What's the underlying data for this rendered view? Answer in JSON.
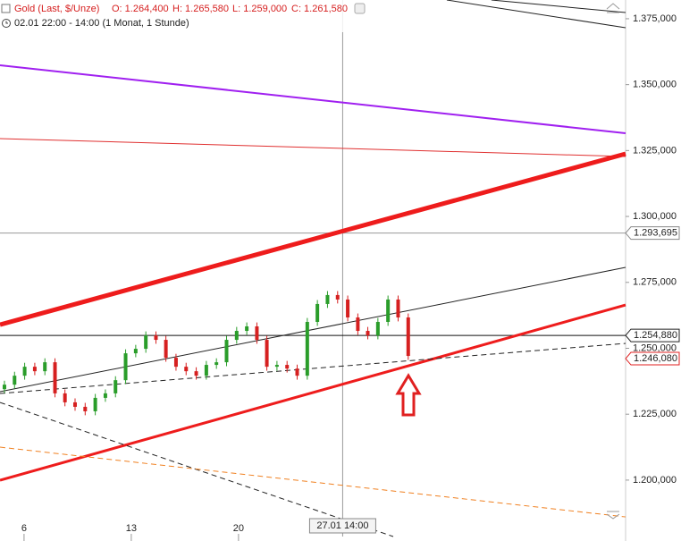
{
  "chart_data": {
    "type": "candlestick",
    "title": "Gold (Last, $/Unze)",
    "ohlc_labels": [
      "O: 1.264,400",
      "H: 1.265,580",
      "L: 1.259,000",
      "C: 1.261,580"
    ],
    "subtitle": "02.01 22:00 - 14:00 (1 Monat, 1 Stunde)",
    "xlim": [
      4.43,
      45.27
    ],
    "ylim": [
      1178.6,
      1382.1
    ],
    "xticks": [
      6,
      13,
      20
    ],
    "yticks": [
      {
        "value": 1375,
        "label": "1.375,000"
      },
      {
        "value": 1350,
        "label": "1.350,000"
      },
      {
        "value": 1325,
        "label": "1.325,000"
      },
      {
        "value": 1300,
        "label": "1.300,000"
      },
      {
        "value": 1275,
        "label": "1.275,000"
      },
      {
        "value": 1250,
        "label": "1.250,000"
      },
      {
        "value": 1225,
        "label": "1.225,000"
      },
      {
        "value": 1200,
        "label": "1.200,000"
      }
    ],
    "up_color": "#2a9d2a",
    "down_color": "#d62020",
    "candles": {
      "x": [
        4.72,
        5.38,
        6.04,
        6.7,
        7.36,
        8.02,
        8.67,
        9.33,
        9.99,
        10.65,
        11.31,
        11.97,
        12.63,
        13.29,
        13.95,
        14.61,
        15.26,
        15.92,
        16.58,
        17.24,
        17.9,
        18.56,
        19.22,
        19.88,
        20.54,
        21.2,
        21.85,
        22.51,
        23.17,
        23.83,
        24.49,
        25.15,
        25.81,
        26.47,
        27.13,
        27.79,
        28.44,
        29.1,
        29.76,
        30.42,
        31.08
      ],
      "open": [
        1234.5,
        1236.2,
        1239.6,
        1243.0,
        1241.3,
        1244.7,
        1232.9,
        1229.5,
        1227.8,
        1226.1,
        1231.2,
        1232.9,
        1237.9,
        1248.1,
        1249.8,
        1254.9,
        1253.2,
        1246.4,
        1243.0,
        1241.3,
        1239.6,
        1243.7,
        1244.7,
        1253.2,
        1256.6,
        1258.3,
        1253.2,
        1243.0,
        1243.7,
        1242.3,
        1239.6,
        1260.0,
        1266.8,
        1270.2,
        1268.5,
        1261.7,
        1256.6,
        1254.9,
        1260.0,
        1268.5,
        1261.7
      ],
      "high": [
        1237.7,
        1241.1,
        1244.5,
        1244.5,
        1246.2,
        1246.2,
        1234.4,
        1231.0,
        1229.3,
        1232.7,
        1234.4,
        1239.4,
        1249.6,
        1251.3,
        1256.4,
        1256.4,
        1254.7,
        1247.9,
        1244.5,
        1242.8,
        1245.2,
        1246.2,
        1254.7,
        1258.1,
        1259.8,
        1259.8,
        1254.7,
        1245.2,
        1245.2,
        1243.8,
        1261.5,
        1268.3,
        1271.7,
        1271.7,
        1270.0,
        1263.2,
        1258.1,
        1261.5,
        1270.0,
        1270.0,
        1263.2
      ],
      "low": [
        1233.0,
        1234.7,
        1238.1,
        1239.8,
        1239.8,
        1231.4,
        1228.0,
        1226.3,
        1224.6,
        1224.6,
        1229.7,
        1231.4,
        1236.4,
        1246.6,
        1248.3,
        1251.7,
        1244.9,
        1241.5,
        1239.8,
        1238.1,
        1238.1,
        1242.2,
        1243.2,
        1251.7,
        1255.1,
        1251.7,
        1241.5,
        1241.5,
        1240.8,
        1238.1,
        1238.1,
        1258.5,
        1265.3,
        1267.0,
        1260.2,
        1255.1,
        1253.4,
        1253.4,
        1258.5,
        1260.2,
        1245.6
      ],
      "close": [
        1236.2,
        1239.6,
        1243.0,
        1241.3,
        1244.7,
        1232.9,
        1229.5,
        1227.8,
        1226.1,
        1231.2,
        1232.9,
        1237.9,
        1248.1,
        1249.8,
        1254.9,
        1253.2,
        1246.4,
        1243.0,
        1241.3,
        1239.6,
        1243.7,
        1244.7,
        1253.2,
        1256.6,
        1258.3,
        1253.2,
        1243.0,
        1243.7,
        1242.3,
        1239.6,
        1260.0,
        1266.8,
        1270.2,
        1268.5,
        1261.7,
        1256.6,
        1254.9,
        1260.0,
        1268.5,
        1261.7,
        1247.1
      ]
    },
    "trend_lines": [
      {
        "x": [
          36.51,
          45.27
        ],
        "y": [
          1382.1,
          1377.35
        ],
        "color": "#222222",
        "width": 1,
        "dashed": false
      },
      {
        "x": [
          33.6,
          45.27
        ],
        "y": [
          1382.1,
          1371.58
        ],
        "color": "#222222",
        "width": 1,
        "dashed": false
      },
      {
        "x": [
          4.43,
          45.27
        ],
        "y": [
          1357.34,
          1331.56
        ],
        "color": "#a020f0",
        "width": 2,
        "dashed": false
      },
      {
        "x": [
          4.43,
          45.27
        ],
        "y": [
          1329.52,
          1322.74
        ],
        "color": "#e03030",
        "width": 1,
        "dashed": false
      },
      {
        "x": [
          4.43,
          45.27
        ],
        "y": [
          1258.97,
          1323.76
        ],
        "color": "#ee1c1c",
        "width": 5,
        "dashed": false
      },
      {
        "x": [
          4.43,
          45.27
        ],
        "y": [
          1199.95,
          1266.43
        ],
        "color": "#ee1c1c",
        "width": 3,
        "dashed": false
      },
      {
        "x": [
          4.43,
          45.27
        ],
        "y": [
          1233.53,
          1280.68
        ],
        "color": "#222222",
        "width": 1,
        "dashed": false
      },
      {
        "x": [
          4.43,
          45.27
        ],
        "y": [
          1232.85,
          1251.85
        ],
        "color": "#222222",
        "width": 1,
        "dashed": true
      },
      {
        "x": [
          4.43,
          30.1
        ],
        "y": [
          1229.46,
          1178.6
        ],
        "color": "#222222",
        "width": 1,
        "dashed": true
      },
      {
        "x": [
          4.43,
          45.27
        ],
        "y": [
          1212.5,
          1186.04
        ],
        "color": "#f08020",
        "width": 1,
        "dashed": true
      }
    ],
    "horizontal_line": 1254.88,
    "crosshair": {
      "label": "27.01 14:00",
      "x": 26.8,
      "y": 1293.695
    },
    "price_tags": [
      {
        "value": 1293.695,
        "label": "1.293,695",
        "color": "#888888"
      },
      {
        "value": 1254.88,
        "label": "1.254,880",
        "color": "#222222"
      },
      {
        "value": 1246.08,
        "label": "1.246,080",
        "color": "#e02020"
      }
    ]
  }
}
